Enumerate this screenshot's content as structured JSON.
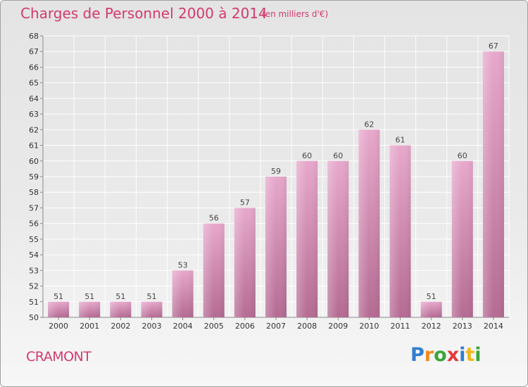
{
  "header": {
    "title": "Charges de Personnel 2000 à 2014",
    "subtitle": "(en milliers d'€)"
  },
  "footer": {
    "town": "CRAMONT",
    "logo_letters": [
      "P",
      "r",
      "o",
      "x",
      "i",
      "t",
      "i"
    ],
    "logo_colors": [
      "#2f7fd0",
      "#f08a1d",
      "#3aa53a",
      "#e23b3b",
      "#2f7fd0",
      "#f0b81d",
      "#3aa53a"
    ]
  },
  "colors": {
    "bar_light": "#e7a8cc",
    "bar_dark": "#b56b93",
    "title": "#d23a6f"
  },
  "chart_data": {
    "type": "bar",
    "title": "Charges de Personnel 2000 à 2014",
    "subtitle": "(en milliers d'€)",
    "categories": [
      "2000",
      "2001",
      "2002",
      "2003",
      "2004",
      "2005",
      "2006",
      "2007",
      "2008",
      "2009",
      "2010",
      "2011",
      "2012",
      "2013",
      "2014"
    ],
    "values": [
      51,
      51,
      51,
      51,
      53,
      56,
      57,
      59,
      60,
      60,
      62,
      61,
      51,
      60,
      67
    ],
    "ylim": [
      50,
      68
    ],
    "yticks": [
      50,
      51,
      52,
      53,
      54,
      55,
      56,
      57,
      58,
      59,
      60,
      61,
      62,
      63,
      64,
      65,
      66,
      67,
      68
    ],
    "grid": true,
    "data_labels": true
  }
}
